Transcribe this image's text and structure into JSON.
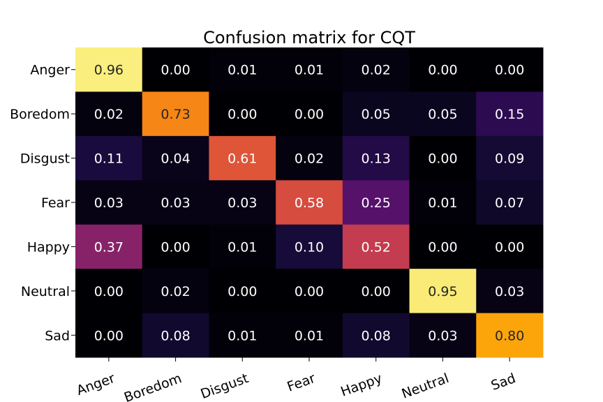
{
  "chart_data": {
    "type": "heatmap",
    "title": "Confusion matrix for CQT",
    "xlabel": "",
    "ylabel": "",
    "colormap": "inferno",
    "value_range": [
      0,
      1
    ],
    "rows": [
      "Anger",
      "Boredom",
      "Disgust",
      "Fear",
      "Happy",
      "Neutral",
      "Sad"
    ],
    "columns": [
      "Anger",
      "Boredom",
      "Disgust",
      "Fear",
      "Happy",
      "Neutral",
      "Sad"
    ],
    "values": [
      [
        0.96,
        0.0,
        0.01,
        0.01,
        0.02,
        0.0,
        0.0
      ],
      [
        0.02,
        0.73,
        0.0,
        0.0,
        0.05,
        0.05,
        0.15
      ],
      [
        0.11,
        0.04,
        0.61,
        0.02,
        0.13,
        0.0,
        0.09
      ],
      [
        0.03,
        0.03,
        0.03,
        0.58,
        0.25,
        0.01,
        0.07
      ],
      [
        0.37,
        0.0,
        0.01,
        0.1,
        0.52,
        0.0,
        0.0
      ],
      [
        0.0,
        0.02,
        0.0,
        0.0,
        0.0,
        0.95,
        0.03
      ],
      [
        0.0,
        0.08,
        0.01,
        0.01,
        0.08,
        0.03,
        0.8
      ]
    ],
    "labels": [
      [
        "0.96",
        "0.00",
        "0.01",
        "0.01",
        "0.02",
        "0.00",
        "0.00"
      ],
      [
        "0.02",
        "0.73",
        "0.00",
        "0.00",
        "0.05",
        "0.05",
        "0.15"
      ],
      [
        "0.11",
        "0.04",
        "0.61",
        "0.02",
        "0.13",
        "0.00",
        "0.09"
      ],
      [
        "0.03",
        "0.03",
        "0.03",
        "0.58",
        "0.25",
        "0.01",
        "0.07"
      ],
      [
        "0.37",
        "0.00",
        "0.01",
        "0.10",
        "0.52",
        "0.00",
        "0.00"
      ],
      [
        "0.00",
        "0.02",
        "0.00",
        "0.00",
        "0.00",
        "0.95",
        "0.03"
      ],
      [
        "0.00",
        "0.08",
        "0.01",
        "0.01",
        "0.08",
        "0.03",
        "0.80"
      ]
    ],
    "colorbar": false,
    "gridlines": false
  }
}
